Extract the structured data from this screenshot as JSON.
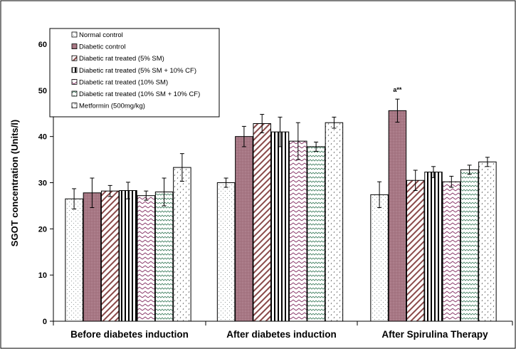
{
  "chart_data": {
    "type": "bar",
    "title": "",
    "xlabel": "",
    "ylabel": "SGOT concentration (Units/l)",
    "ylim": [
      0,
      60
    ],
    "yticks": [
      0,
      10,
      20,
      30,
      40,
      50,
      60
    ],
    "categories": [
      "Before diabetes induction",
      "After diabetes induction",
      "After Spirulina Therapy"
    ],
    "legend_position": "top-left",
    "series": [
      {
        "name": "Normal control",
        "values": [
          26.5,
          30.0,
          27.4
        ],
        "errors": [
          2.2,
          1.0,
          2.8
        ],
        "color": "#ffffff",
        "pattern": "dots"
      },
      {
        "name": "Diabetic control",
        "values": [
          27.8,
          40.0,
          45.6
        ],
        "errors": [
          3.2,
          2.2,
          2.5
        ],
        "color": "#a0717e",
        "pattern": "solid-dots"
      },
      {
        "name": "Diabetic rat treated (5% SM)",
        "values": [
          28.2,
          42.8,
          30.5
        ],
        "errors": [
          1.2,
          2.0,
          2.2
        ],
        "color": "#8a4a4a",
        "pattern": "diagonal"
      },
      {
        "name": "Diabetic rat treated  (5% SM + 10% CF)",
        "values": [
          28.3,
          41.0,
          32.3
        ],
        "errors": [
          1.8,
          3.2,
          1.2
        ],
        "color": "#000000",
        "pattern": "vertical"
      },
      {
        "name": "Diabetic rat treated (10% SM)",
        "values": [
          27.2,
          39.0,
          30.2
        ],
        "errors": [
          1.0,
          4.0,
          1.2
        ],
        "color": "#8a3a6a",
        "pattern": "zigzag"
      },
      {
        "name": "Diabetic rat treated (10% SM + 10% CF)",
        "values": [
          28.0,
          37.8,
          32.8
        ],
        "errors": [
          3.0,
          1.0,
          1.0
        ],
        "color": "#3a7a5a",
        "pattern": "waves"
      },
      {
        "name": "Metformin (500mg/kg)",
        "values": [
          33.3,
          43.0,
          34.5
        ],
        "errors": [
          3.0,
          1.2,
          1.0
        ],
        "color": "#555555",
        "pattern": "checks"
      }
    ],
    "annotations": [
      {
        "text": "a**",
        "category_index": 2,
        "series_index": 1
      }
    ]
  }
}
